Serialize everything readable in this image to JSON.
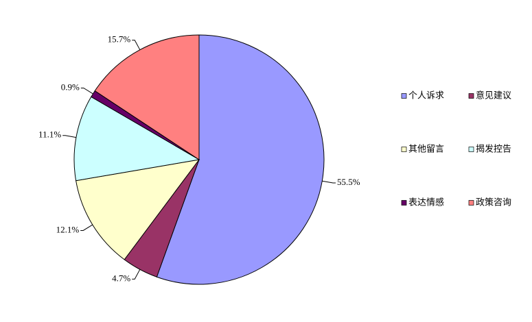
{
  "chart_data": {
    "type": "pie",
    "categories": [
      "个人诉求",
      "意见建议",
      "其他留言",
      "揭发控告",
      "表达情感",
      "政策咨询"
    ],
    "values": [
      55.5,
      4.7,
      12.1,
      11.1,
      0.9,
      15.7
    ],
    "value_labels": [
      "55.5%",
      "4.7%",
      "12.1%",
      "11.1%",
      "0.9%",
      "15.7%"
    ],
    "colors": [
      "#9999ff",
      "#993366",
      "#ffffcc",
      "#ccffff",
      "#660066",
      "#ff8080"
    ],
    "legend": "right"
  }
}
